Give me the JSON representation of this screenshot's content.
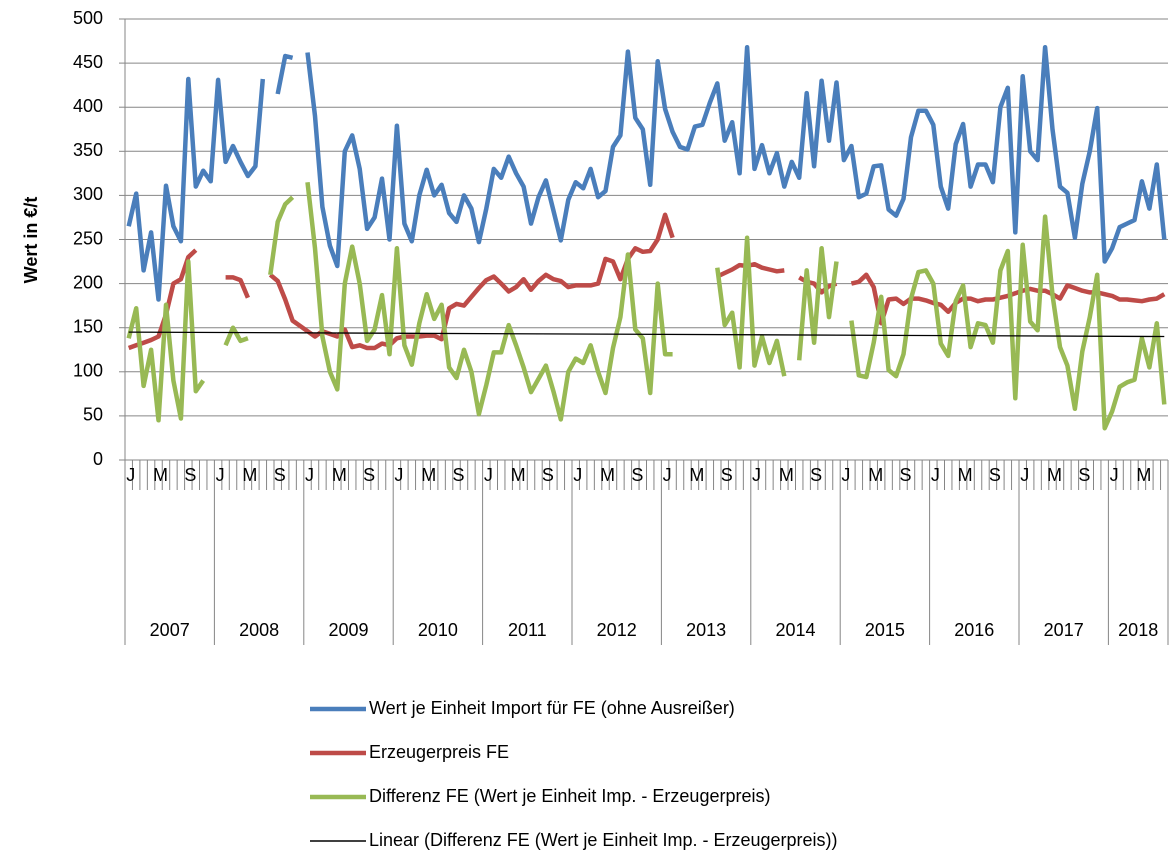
{
  "chart_data": {
    "type": "line",
    "y_label": "Wert in €/t",
    "ylim": [
      0,
      500
    ],
    "yticks": [
      0,
      50,
      100,
      150,
      200,
      250,
      300,
      350,
      400,
      450,
      500
    ],
    "grid": true,
    "categories": [
      "J",
      null,
      null,
      null,
      "M",
      null,
      null,
      null,
      "S",
      null,
      null,
      null,
      "J",
      null,
      null,
      null,
      "M",
      null,
      null,
      null,
      "S",
      null,
      null,
      null,
      "J",
      null,
      null,
      null,
      "M",
      null,
      null,
      null,
      "S",
      null,
      null,
      null,
      "J",
      null,
      null,
      null,
      "M",
      null,
      null,
      null,
      "S",
      null,
      null,
      null,
      "J",
      null,
      null,
      null,
      "M",
      null,
      null,
      null,
      "S",
      null,
      null,
      null,
      "J",
      null,
      null,
      null,
      "M",
      null,
      null,
      null,
      "S",
      null,
      null,
      null,
      "J",
      null,
      null,
      null,
      "M",
      null,
      null,
      null,
      "S",
      null,
      null,
      null,
      "J",
      null,
      null,
      null,
      "M",
      null,
      null,
      null,
      "S",
      null,
      null,
      null,
      "J",
      null,
      null,
      null,
      "M",
      null,
      null,
      null,
      "S",
      null,
      null,
      null,
      "J",
      null,
      null,
      null,
      "M",
      null,
      null,
      null,
      "S",
      null,
      null,
      null,
      "J",
      null,
      null,
      null,
      "M",
      null,
      null,
      null,
      "S",
      null,
      null,
      null,
      "J",
      null,
      null,
      null,
      "M",
      null,
      null,
      null
    ],
    "years": [
      "2007",
      "2008",
      "2009",
      "2010",
      "2011",
      "2012",
      "2013",
      "2014",
      "2015",
      "2016",
      "2017",
      "2018"
    ],
    "series": [
      {
        "name": "Wert je Einheit Import für FE (ohne Ausreißer)",
        "color": "#4a7ebb",
        "values": [
          265,
          302,
          215,
          258,
          182,
          311,
          265,
          248,
          432,
          310,
          328,
          316,
          431,
          338,
          356,
          338,
          322,
          333,
          432,
          null,
          415,
          458,
          456,
          null,
          462,
          390,
          287,
          243,
          220,
          350,
          368,
          330,
          262,
          275,
          319,
          250,
          379,
          268,
          248,
          300,
          329,
          300,
          312,
          280,
          270,
          300,
          285,
          247,
          285,
          330,
          320,
          344,
          325,
          310,
          268,
          298,
          317,
          283,
          249,
          295,
          315,
          308,
          330,
          298,
          305,
          355,
          368,
          463,
          388,
          375,
          312,
          452,
          398,
          372,
          355,
          352,
          378,
          380,
          405,
          427,
          362,
          383,
          325,
          468,
          330,
          357,
          325,
          348,
          310,
          338,
          320,
          416,
          333,
          430,
          362,
          428,
          340,
          356,
          298,
          302,
          333,
          334,
          284,
          277,
          296,
          366,
          396,
          396,
          380,
          310,
          285,
          358,
          381,
          310,
          335,
          335,
          315,
          400,
          422,
          258,
          435,
          350,
          340,
          468,
          375,
          310,
          303,
          252,
          313,
          350,
          399,
          225,
          240,
          264,
          268,
          272,
          316,
          285,
          335,
          250
        ]
      },
      {
        "name": "Erzeugerpreis FE",
        "color": "#be4b48",
        "values": [
          127,
          130,
          133,
          136,
          140,
          165,
          200,
          205,
          230,
          238,
          null,
          null,
          null,
          207,
          207,
          204,
          184,
          null,
          null,
          210,
          203,
          182,
          158,
          152,
          146,
          140,
          146,
          143,
          140,
          148,
          128,
          130,
          127,
          127,
          132,
          130,
          138,
          140,
          140,
          140,
          141,
          141,
          137,
          172,
          177,
          175,
          185,
          195,
          204,
          208,
          200,
          191,
          196,
          205,
          193,
          203,
          210,
          205,
          203,
          196,
          198,
          198,
          198,
          200,
          228,
          225,
          205,
          228,
          240,
          236,
          237,
          250,
          278,
          252,
          null,
          null,
          null,
          null,
          null,
          208,
          212,
          216,
          221,
          220,
          222,
          218,
          216,
          214,
          215,
          null,
          207,
          202,
          200,
          190,
          197,
          200,
          null,
          200,
          202,
          210,
          196,
          155,
          182,
          183,
          177,
          183,
          183,
          181,
          178,
          176,
          168,
          178,
          183,
          183,
          180,
          182,
          182,
          184,
          186,
          189,
          192,
          194,
          192,
          192,
          188,
          183,
          198,
          195,
          192,
          190,
          190,
          188,
          186,
          182,
          182,
          181,
          180,
          182,
          183,
          188
        ]
      },
      {
        "name": "Differenz FE (Wert je Einheit Imp. - Erzeugerpreis)",
        "color": "#98b954",
        "values": [
          138,
          172,
          84,
          125,
          45,
          176,
          90,
          47,
          225,
          78,
          90,
          null,
          null,
          130,
          150,
          135,
          138,
          null,
          null,
          210,
          270,
          290,
          298,
          null,
          315,
          240,
          140,
          100,
          80,
          200,
          242,
          200,
          135,
          148,
          187,
          120,
          240,
          130,
          108,
          155,
          188,
          160,
          176,
          105,
          93,
          125,
          100,
          52,
          85,
          122,
          122,
          153,
          130,
          105,
          77,
          92,
          107,
          78,
          46,
          100,
          115,
          110,
          130,
          100,
          76,
          127,
          162,
          233,
          148,
          138,
          76,
          200,
          120,
          120,
          null,
          null,
          null,
          null,
          null,
          218,
          153,
          167,
          105,
          252,
          107,
          140,
          110,
          135,
          95,
          null,
          113,
          215,
          133,
          240,
          162,
          225,
          null,
          158,
          96,
          94,
          133,
          185,
          102,
          95,
          120,
          183,
          213,
          215,
          200,
          132,
          118,
          180,
          198,
          128,
          155,
          153,
          133,
          215,
          237,
          70,
          244,
          157,
          147,
          276,
          187,
          128,
          107,
          58,
          123,
          162,
          210,
          36,
          55,
          83,
          88,
          91,
          138,
          105,
          155,
          63
        ]
      }
    ],
    "trend": {
      "name": "Linear (Differenz FE (Wert je Einheit Imp. - Erzeugerpreis))",
      "color": "#000000",
      "values": [
        145,
        140
      ]
    }
  }
}
